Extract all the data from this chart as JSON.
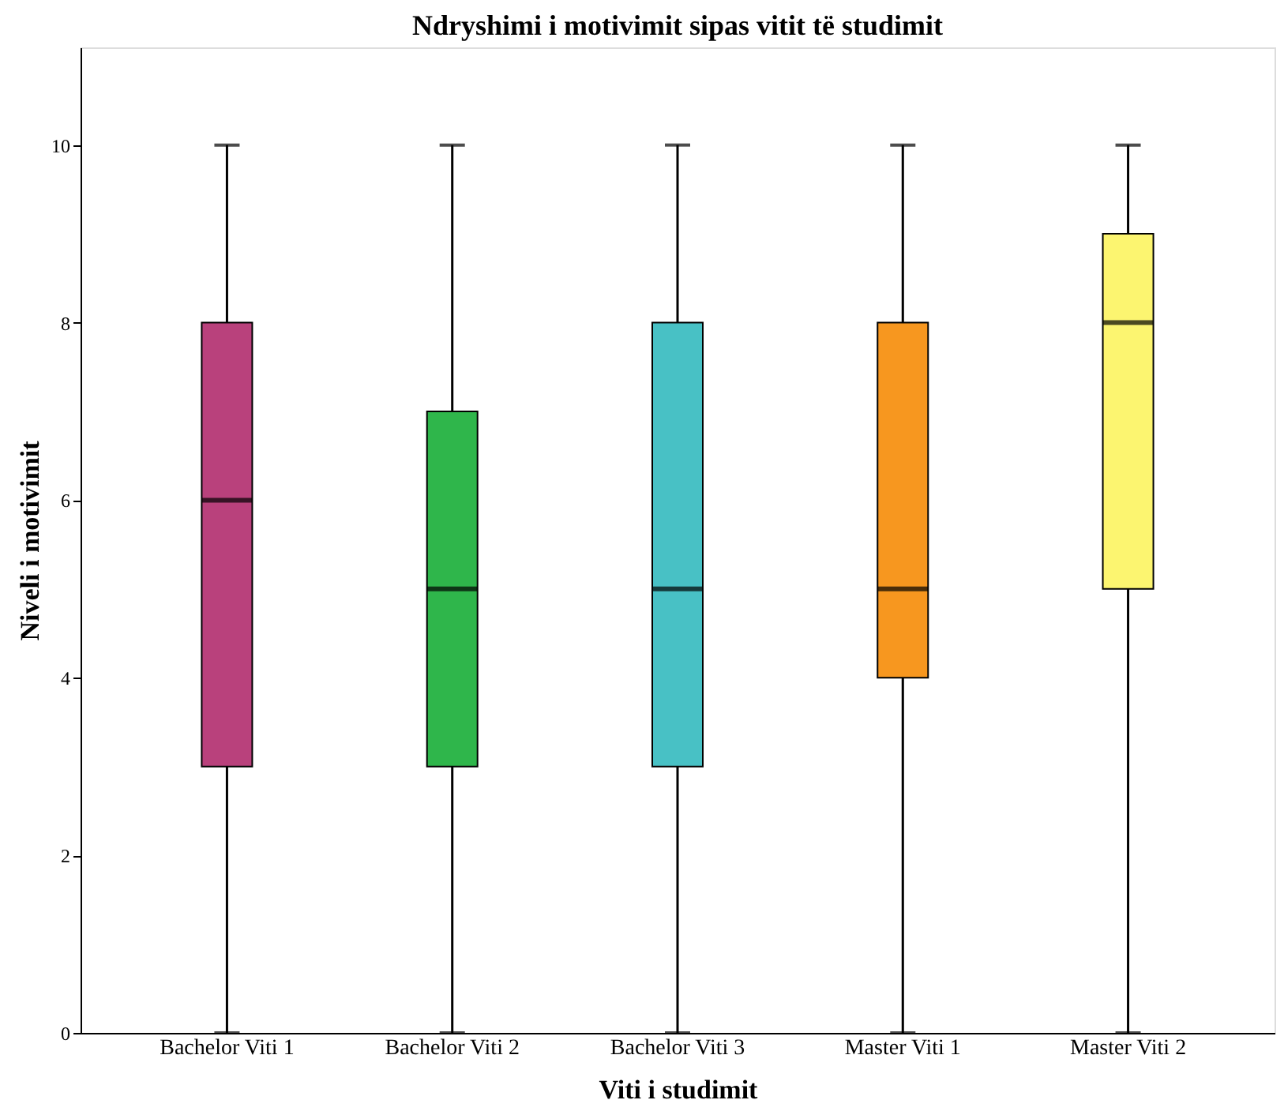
{
  "chart_data": {
    "type": "box",
    "title": "Ndryshimi i motivimit sipas vitit të studimit",
    "xlabel": "Viti i studimit",
    "ylabel": "Niveli i motivimit",
    "categories": [
      "Bachelor Viti 1",
      "Bachelor Viti 2",
      "Bachelor Viti 3",
      "Master Viti 1",
      "Master Viti 2"
    ],
    "boxes": [
      {
        "low": 0,
        "q1": 3,
        "median": 6,
        "q3": 8,
        "high": 10
      },
      {
        "low": 0,
        "q1": 3,
        "median": 5,
        "q3": 7,
        "high": 10
      },
      {
        "low": 0,
        "q1": 3,
        "median": 5,
        "q3": 8,
        "high": 10
      },
      {
        "low": 0,
        "q1": 4,
        "median": 5,
        "q3": 8,
        "high": 10
      },
      {
        "low": 0,
        "q1": 5,
        "median": 8,
        "q3": 9,
        "high": 10
      }
    ],
    "colors": [
      "#b9417c",
      "#2fb64b",
      "#48c1c5",
      "#f7971f",
      "#fcf570"
    ],
    "ylim": [
      0,
      11.1
    ],
    "yticks": [
      0,
      2,
      4,
      6,
      8,
      10
    ],
    "grid": false,
    "legend": false
  }
}
